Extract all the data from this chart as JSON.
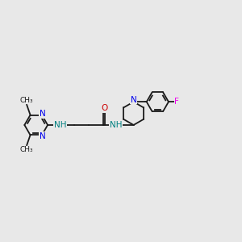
{
  "bg_color": "#e8e8e8",
  "bond_color": "#1a1a1a",
  "N_color": "#0000ee",
  "O_color": "#cc0000",
  "F_color": "#ee00ee",
  "NH_color": "#008080",
  "figsize": [
    3.0,
    3.0
  ],
  "dpi": 100,
  "xlim": [
    0,
    12
  ],
  "ylim": [
    0,
    12
  ]
}
